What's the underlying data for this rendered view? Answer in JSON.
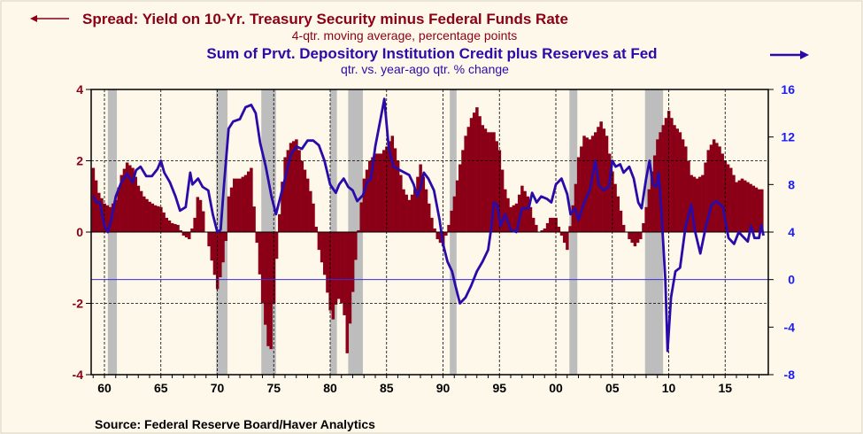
{
  "chart_data": {
    "type": "bar+line",
    "title": "Spread: Yield on 10-Yr. Treasury Security minus Federal Funds Rate",
    "subtitle": "4-qtr. moving average, percentage points",
    "title2": "Sum of Prvt. Depository Institution Credit plus Reserves at Fed",
    "subtitle2": "qtr. vs. year-ago qtr. % change",
    "source": "Source:  Federal Reserve Board/Haver Analytics",
    "xlim": [
      1958.8,
      2018.6
    ],
    "x_tick_labels": [
      "60",
      "65",
      "70",
      "75",
      "80",
      "85",
      "90",
      "95",
      "00",
      "05",
      "10",
      "15"
    ],
    "x_tick_years": [
      1960,
      1965,
      1970,
      1975,
      1980,
      1985,
      1990,
      1995,
      2000,
      2005,
      2010,
      2015
    ],
    "left_axis": {
      "ylim": [
        -4,
        4
      ],
      "ticks": [
        "4",
        "2",
        "0",
        "-2",
        "-4"
      ],
      "tick_values": [
        4,
        2,
        0,
        -2,
        -4
      ],
      "color": "#8b0016"
    },
    "right_axis": {
      "ylim": [
        -8,
        16
      ],
      "ticks": [
        "16",
        "12",
        "8",
        "4",
        "0",
        "-4",
        "-8"
      ],
      "tick_values": [
        16,
        12,
        8,
        4,
        0,
        -4,
        -8
      ],
      "color": "#1a1aff"
    },
    "grid": true,
    "recessions": [
      [
        1960.3,
        1961.1
      ],
      [
        1969.9,
        1970.9
      ],
      [
        1973.9,
        1975.2
      ],
      [
        1980.0,
        1980.6
      ],
      [
        1981.6,
        1982.9
      ],
      [
        1990.6,
        1991.2
      ],
      [
        2001.2,
        2001.9
      ],
      [
        2007.9,
        2009.5
      ]
    ],
    "series": [
      {
        "axis": "left",
        "type": "bar",
        "color": "#8b0016",
        "points": [
          [
            1959.0,
            1.8
          ],
          [
            1959.5,
            1.1
          ],
          [
            1960.0,
            0.8
          ],
          [
            1960.5,
            0.7
          ],
          [
            1961.0,
            0.9
          ],
          [
            1961.5,
            1.6
          ],
          [
            1962.0,
            1.95
          ],
          [
            1962.5,
            1.8
          ],
          [
            1963.0,
            1.3
          ],
          [
            1963.5,
            1.0
          ],
          [
            1964.0,
            0.85
          ],
          [
            1964.5,
            0.75
          ],
          [
            1965.0,
            0.7
          ],
          [
            1965.5,
            0.4
          ],
          [
            1966.0,
            0.25
          ],
          [
            1966.5,
            0.2
          ],
          [
            1967.0,
            -0.1
          ],
          [
            1967.5,
            -0.2
          ],
          [
            1968.0,
            0.4
          ],
          [
            1968.3,
            1.1
          ],
          [
            1968.7,
            0.7
          ],
          [
            1969.0,
            0.0
          ],
          [
            1969.5,
            -0.8
          ],
          [
            1970.0,
            -1.6
          ],
          [
            1970.3,
            -1.2
          ],
          [
            1970.7,
            -0.5
          ],
          [
            1971.0,
            1.0
          ],
          [
            1971.5,
            1.5
          ],
          [
            1972.0,
            1.5
          ],
          [
            1972.5,
            1.6
          ],
          [
            1973.0,
            1.8
          ],
          [
            1973.3,
            0.5
          ],
          [
            1973.6,
            -0.7
          ],
          [
            1974.0,
            -2.0
          ],
          [
            1974.5,
            -3.2
          ],
          [
            1974.8,
            -3.3
          ],
          [
            1975.0,
            -2.0
          ],
          [
            1975.3,
            -0.5
          ],
          [
            1975.6,
            1.0
          ],
          [
            1976.0,
            2.1
          ],
          [
            1976.5,
            2.5
          ],
          [
            1977.0,
            2.6
          ],
          [
            1977.5,
            2.0
          ],
          [
            1978.0,
            1.5
          ],
          [
            1978.5,
            0.8
          ],
          [
            1979.0,
            -0.5
          ],
          [
            1979.5,
            -1.2
          ],
          [
            1980.0,
            -2.2
          ],
          [
            1980.3,
            -2.5
          ],
          [
            1980.6,
            -1.8
          ],
          [
            1981.0,
            -2.0
          ],
          [
            1981.3,
            -2.4
          ],
          [
            1981.5,
            -3.4
          ],
          [
            1981.8,
            -2.4
          ],
          [
            1982.3,
            -0.6
          ],
          [
            1982.7,
            0.7
          ],
          [
            1983.0,
            1.5
          ],
          [
            1983.5,
            2.0
          ],
          [
            1984.0,
            2.2
          ],
          [
            1984.5,
            2.2
          ],
          [
            1985.0,
            2.4
          ],
          [
            1985.5,
            2.7
          ],
          [
            1986.0,
            2.0
          ],
          [
            1986.5,
            1.2
          ],
          [
            1987.0,
            0.9
          ],
          [
            1987.5,
            1.2
          ],
          [
            1988.0,
            1.9
          ],
          [
            1988.5,
            1.2
          ],
          [
            1989.0,
            0.4
          ],
          [
            1989.5,
            -0.2
          ],
          [
            1990.0,
            -0.4
          ],
          [
            1990.5,
            0.2
          ],
          [
            1991.0,
            1.0
          ],
          [
            1991.5,
            1.9
          ],
          [
            1992.0,
            2.7
          ],
          [
            1992.5,
            3.2
          ],
          [
            1993.0,
            3.5
          ],
          [
            1993.5,
            3.0
          ],
          [
            1994.0,
            2.8
          ],
          [
            1994.5,
            2.8
          ],
          [
            1995.0,
            2.3
          ],
          [
            1995.5,
            1.2
          ],
          [
            1996.0,
            0.7
          ],
          [
            1996.5,
            0.8
          ],
          [
            1997.0,
            1.3
          ],
          [
            1997.5,
            1.0
          ],
          [
            1998.0,
            0.4
          ],
          [
            1998.5,
            0.0
          ],
          [
            1999.0,
            0.1
          ],
          [
            1999.5,
            0.4
          ],
          [
            2000.0,
            0.4
          ],
          [
            2000.5,
            -0.1
          ],
          [
            2001.0,
            -0.5
          ],
          [
            2001.3,
            0.3
          ],
          [
            2001.7,
            1.2
          ],
          [
            2002.0,
            2.1
          ],
          [
            2002.5,
            2.7
          ],
          [
            2003.0,
            2.6
          ],
          [
            2003.5,
            2.8
          ],
          [
            2004.0,
            3.1
          ],
          [
            2004.5,
            2.7
          ],
          [
            2005.0,
            1.7
          ],
          [
            2005.5,
            1.0
          ],
          [
            2006.0,
            0.2
          ],
          [
            2006.5,
            -0.2
          ],
          [
            2007.0,
            -0.4
          ],
          [
            2007.5,
            -0.2
          ],
          [
            2008.0,
            0.7
          ],
          [
            2008.5,
            1.7
          ],
          [
            2009.0,
            2.6
          ],
          [
            2009.5,
            3.0
          ],
          [
            2010.0,
            3.4
          ],
          [
            2010.5,
            3.0
          ],
          [
            2011.0,
            2.8
          ],
          [
            2011.5,
            2.4
          ],
          [
            2012.0,
            1.6
          ],
          [
            2012.5,
            1.5
          ],
          [
            2013.0,
            1.6
          ],
          [
            2013.5,
            2.3
          ],
          [
            2014.0,
            2.6
          ],
          [
            2014.5,
            2.4
          ],
          [
            2015.0,
            2.0
          ],
          [
            2015.5,
            1.8
          ],
          [
            2016.0,
            1.4
          ],
          [
            2016.5,
            1.5
          ],
          [
            2017.0,
            1.4
          ],
          [
            2017.5,
            1.3
          ],
          [
            2018.0,
            1.2
          ],
          [
            2018.3,
            1.2
          ]
        ]
      },
      {
        "axis": "right",
        "type": "line",
        "color": "#2a0aa8",
        "points": [
          [
            1959.0,
            7
          ],
          [
            1959.3,
            6.5
          ],
          [
            1959.6,
            6.5
          ],
          [
            1960.0,
            4.5
          ],
          [
            1960.3,
            4.0
          ],
          [
            1960.6,
            5
          ],
          [
            1961.0,
            7
          ],
          [
            1961.5,
            8.2
          ],
          [
            1962.0,
            8.9
          ],
          [
            1962.5,
            8.2
          ],
          [
            1962.8,
            9.2
          ],
          [
            1963.2,
            9.5
          ],
          [
            1963.7,
            8.7
          ],
          [
            1964.2,
            8.7
          ],
          [
            1964.7,
            9.3
          ],
          [
            1965.0,
            10.0
          ],
          [
            1965.3,
            9.0
          ],
          [
            1965.8,
            8.2
          ],
          [
            1966.3,
            7.0
          ],
          [
            1966.7,
            5.8
          ],
          [
            1967.2,
            6.1
          ],
          [
            1967.6,
            9.0
          ],
          [
            1967.8,
            8.0
          ],
          [
            1968.3,
            8.5
          ],
          [
            1968.7,
            7.8
          ],
          [
            1969.2,
            7.5
          ],
          [
            1969.6,
            5.5
          ],
          [
            1970.0,
            4.0
          ],
          [
            1970.3,
            4.2
          ],
          [
            1970.6,
            8.0
          ],
          [
            1971.0,
            12.7
          ],
          [
            1971.4,
            13.3
          ],
          [
            1972.0,
            13.5
          ],
          [
            1972.5,
            14.5
          ],
          [
            1973.0,
            14.7
          ],
          [
            1973.4,
            14.0
          ],
          [
            1973.8,
            11.5
          ],
          [
            1974.3,
            9.5
          ],
          [
            1974.8,
            7.0
          ],
          [
            1975.2,
            5.5
          ],
          [
            1975.6,
            7.0
          ],
          [
            1976.0,
            8.5
          ],
          [
            1976.5,
            10.5
          ],
          [
            1977.0,
            11.2
          ],
          [
            1977.5,
            11.0
          ],
          [
            1978.0,
            11.7
          ],
          [
            1978.5,
            11.7
          ],
          [
            1979.0,
            11.3
          ],
          [
            1979.5,
            10.0
          ],
          [
            1980.0,
            8.0
          ],
          [
            1980.5,
            7.3
          ],
          [
            1980.8,
            8.0
          ],
          [
            1981.2,
            8.5
          ],
          [
            1981.6,
            7.8
          ],
          [
            1982.0,
            7.5
          ],
          [
            1982.4,
            6.6
          ],
          [
            1982.9,
            7.1
          ],
          [
            1983.3,
            8.3
          ],
          [
            1983.6,
            8.4
          ],
          [
            1984.0,
            11.2
          ],
          [
            1984.5,
            13.7
          ],
          [
            1984.8,
            15.2
          ],
          [
            1985.2,
            11.0
          ],
          [
            1985.6,
            9.5
          ],
          [
            1986.2,
            9.2
          ],
          [
            1986.6,
            9.0
          ],
          [
            1987.0,
            8.8
          ],
          [
            1987.4,
            8.0
          ],
          [
            1987.7,
            7.0
          ],
          [
            1988.0,
            7.7
          ],
          [
            1988.3,
            9.0
          ],
          [
            1988.7,
            8.5
          ],
          [
            1989.2,
            7.5
          ],
          [
            1989.7,
            5.0
          ],
          [
            1990.0,
            3.0
          ],
          [
            1990.4,
            1.5
          ],
          [
            1990.8,
            0.7
          ],
          [
            1991.1,
            -0.5
          ],
          [
            1991.5,
            -2.0
          ],
          [
            1992.0,
            -1.5
          ],
          [
            1992.5,
            -0.5
          ],
          [
            1993.0,
            0.7
          ],
          [
            1993.5,
            1.5
          ],
          [
            1994.0,
            2.5
          ],
          [
            1994.3,
            4.5
          ],
          [
            1994.5,
            6.5
          ],
          [
            1994.8,
            6.3
          ],
          [
            1995.1,
            4.5
          ],
          [
            1995.5,
            5.5
          ],
          [
            1996.0,
            4.2
          ],
          [
            1996.5,
            4.0
          ],
          [
            1997.0,
            6.0
          ],
          [
            1997.3,
            6.0
          ],
          [
            1997.6,
            6.0
          ],
          [
            1997.9,
            7.3
          ],
          [
            1998.3,
            6.5
          ],
          [
            1998.7,
            7.0
          ],
          [
            1999.2,
            6.8
          ],
          [
            1999.6,
            6.5
          ],
          [
            2000.0,
            8.0
          ],
          [
            2000.5,
            8.5
          ],
          [
            2001.0,
            7.2
          ],
          [
            2001.3,
            5.5
          ],
          [
            2001.7,
            6.0
          ],
          [
            2002.0,
            5.0
          ],
          [
            2002.5,
            6.5
          ],
          [
            2003.0,
            7.5
          ],
          [
            2003.5,
            10.0
          ],
          [
            2003.8,
            8.0
          ],
          [
            2004.2,
            7.5
          ],
          [
            2004.7,
            7.8
          ],
          [
            2005.0,
            10.0
          ],
          [
            2005.3,
            9.5
          ],
          [
            2005.7,
            9.7
          ],
          [
            2006.0,
            9.0
          ],
          [
            2006.5,
            9.5
          ],
          [
            2006.9,
            8.5
          ],
          [
            2007.3,
            6.5
          ],
          [
            2007.6,
            6.0
          ],
          [
            2008.0,
            8.5
          ],
          [
            2008.3,
            10.0
          ],
          [
            2008.6,
            8.0
          ],
          [
            2008.9,
            7.8
          ],
          [
            2009.1,
            9.0
          ],
          [
            2009.3,
            6.5
          ],
          [
            2009.7,
            0.0
          ],
          [
            2009.9,
            -6.0
          ],
          [
            2010.2,
            -1.5
          ],
          [
            2010.6,
            0.7
          ],
          [
            2011.0,
            1.0
          ],
          [
            2011.5,
            4.5
          ],
          [
            2012.0,
            6.3
          ],
          [
            2012.3,
            4.2
          ],
          [
            2012.8,
            2.2
          ],
          [
            2013.3,
            4.5
          ],
          [
            2013.8,
            6.3
          ],
          [
            2014.2,
            6.6
          ],
          [
            2014.8,
            6.1
          ],
          [
            2015.0,
            5.0
          ],
          [
            2015.3,
            3.5
          ],
          [
            2015.8,
            3.0
          ],
          [
            2016.2,
            4.0
          ],
          [
            2016.6,
            3.6
          ],
          [
            2017.0,
            3.2
          ],
          [
            2017.3,
            4.5
          ],
          [
            2017.6,
            3.5
          ],
          [
            2018.0,
            3.5
          ],
          [
            2018.2,
            4.6
          ],
          [
            2018.4,
            3.7
          ]
        ]
      }
    ]
  }
}
